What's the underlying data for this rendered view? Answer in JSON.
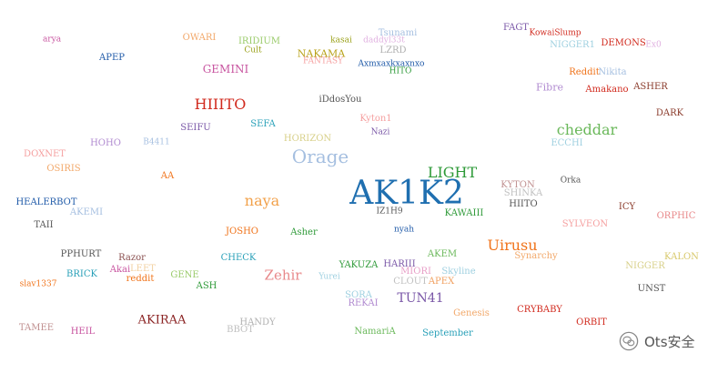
{
  "words": [
    {
      "text": "AK1K2",
      "color": "#1f6fb0"
    },
    {
      "text": "Orage",
      "color": "#a5bfe0"
    },
    {
      "text": "LIGHT",
      "color": "#2e9a38"
    },
    {
      "text": "HIIITO",
      "color": "#d12a1e"
    },
    {
      "text": "cheddar",
      "color": "#6ab85a"
    },
    {
      "text": "naya",
      "color": "#f2a14a"
    },
    {
      "text": "Uirusu",
      "color": "#f0731a"
    },
    {
      "text": "Zehir",
      "color": "#e8888a"
    },
    {
      "text": "TUN41",
      "color": "#7a57a7"
    },
    {
      "text": "AKIRAA",
      "color": "#8a2222"
    },
    {
      "text": "GEMINI",
      "color": "#c855a0"
    },
    {
      "text": "arya",
      "color": "#c855a0"
    },
    {
      "text": "APEP",
      "color": "#1f5aa8"
    },
    {
      "text": "OWARI",
      "color": "#f2a86a"
    },
    {
      "text": "IRIDIUM",
      "color": "#9acb6a"
    },
    {
      "text": "Cult",
      "color": "#9aa11a"
    },
    {
      "text": "NAKAMA",
      "color": "#b8a21a"
    },
    {
      "text": "FANTASY",
      "color": "#f5a0a0"
    },
    {
      "text": "kasai",
      "color": "#9aa11a"
    },
    {
      "text": "Tsunami",
      "color": "#a5bfe0"
    },
    {
      "text": "daddyl33t",
      "color": "#e0b0e0"
    },
    {
      "text": "LZRD",
      "color": "#b0b0b0"
    },
    {
      "text": "Axmxaxkxaxnxo",
      "color": "#1f5aa8"
    },
    {
      "text": "HITO",
      "color": "#2e9a38"
    },
    {
      "text": "FAGT",
      "color": "#7a57a7"
    },
    {
      "text": "KowaiSlump",
      "color": "#d12a1e"
    },
    {
      "text": "NIGGER1",
      "color": "#9fd0e0"
    },
    {
      "text": "DEMONS",
      "color": "#d12a1e"
    },
    {
      "text": "Ex0",
      "color": "#e0b0e0"
    },
    {
      "text": "Reddit",
      "color": "#f0731a"
    },
    {
      "text": "Nikita",
      "color": "#a5bfe0"
    },
    {
      "text": "Fibre",
      "color": "#b08ad0"
    },
    {
      "text": "Amakano",
      "color": "#d12a1e"
    },
    {
      "text": "ASHER",
      "color": "#8a3a2a"
    },
    {
      "text": "DARK",
      "color": "#8a3a2a"
    },
    {
      "text": "iDdosYou",
      "color": "#555555"
    },
    {
      "text": "Kyton1",
      "color": "#f5a0a0"
    },
    {
      "text": "Nazi",
      "color": "#7a57a7"
    },
    {
      "text": "HORIZON",
      "color": "#d8d08a"
    },
    {
      "text": "SEIFU",
      "color": "#7a57a7"
    },
    {
      "text": "SEFA",
      "color": "#29a0b8"
    },
    {
      "text": "HOHO",
      "color": "#b08ad0"
    },
    {
      "text": "B4411",
      "color": "#a5bfe0"
    },
    {
      "text": "DOXNET",
      "color": "#f5a0a0"
    },
    {
      "text": "OSIRIS",
      "color": "#f2a86a"
    },
    {
      "text": "AA",
      "color": "#f0731a"
    },
    {
      "text": "ECCHI",
      "color": "#9fd0e0"
    },
    {
      "text": "Orka",
      "color": "#555555"
    },
    {
      "text": "KYTON",
      "color": "#c09090"
    },
    {
      "text": "SHINKA",
      "color": "#c0c0c0"
    },
    {
      "text": "HIITO",
      "color": "#555555"
    },
    {
      "text": "ICY",
      "color": "#8a3a2a"
    },
    {
      "text": "ORPHIC",
      "color": "#e8888a"
    },
    {
      "text": "SYLVEON",
      "color": "#f5a0a0"
    },
    {
      "text": "HEALERBOT",
      "color": "#1f5aa8"
    },
    {
      "text": "AKEMI",
      "color": "#a5bfe0"
    },
    {
      "text": "TAII",
      "color": "#555555"
    },
    {
      "text": "IZ1H9",
      "color": "#555555"
    },
    {
      "text": "KAWAIII",
      "color": "#2e9a38"
    },
    {
      "text": "JOSHO",
      "color": "#f0731a"
    },
    {
      "text": "Asher",
      "color": "#2e9a38"
    },
    {
      "text": "nyah",
      "color": "#1f5aa8"
    },
    {
      "text": "AKEM",
      "color": "#6ab85a"
    },
    {
      "text": "Synarchy",
      "color": "#f2a86a"
    },
    {
      "text": "KALON",
      "color": "#d8c86a"
    },
    {
      "text": "NIGGER",
      "color": "#d8d08a"
    },
    {
      "text": "UNST",
      "color": "#555555"
    },
    {
      "text": "PPHURT",
      "color": "#555555"
    },
    {
      "text": "Razor",
      "color": "#8a5050"
    },
    {
      "text": "CHECK",
      "color": "#29a0b8"
    },
    {
      "text": "YAKUZA",
      "color": "#2e9a38"
    },
    {
      "text": "HARIII",
      "color": "#7a57a7"
    },
    {
      "text": "MIORI",
      "color": "#e8a0c8"
    },
    {
      "text": "Skyline",
      "color": "#9fd0e0"
    },
    {
      "text": "CLOUT",
      "color": "#c0c0c0"
    },
    {
      "text": "APEX",
      "color": "#f0a060"
    },
    {
      "text": "Akai",
      "color": "#c855a0"
    },
    {
      "text": "LEET",
      "color": "#f2d0a0"
    },
    {
      "text": "BRICK",
      "color": "#29a0b8"
    },
    {
      "text": "reddit",
      "color": "#f0731a"
    },
    {
      "text": "GENE",
      "color": "#9acb6a"
    },
    {
      "text": "ASH",
      "color": "#2e9a38"
    },
    {
      "text": "slav1337",
      "color": "#f0731a"
    },
    {
      "text": "Yurei",
      "color": "#9fd0e0"
    },
    {
      "text": "SORA",
      "color": "#9fd0e0"
    },
    {
      "text": "REKAI",
      "color": "#b08ad0"
    },
    {
      "text": "Genesis",
      "color": "#f2a86a"
    },
    {
      "text": "CRYBABY",
      "color": "#d12a1e"
    },
    {
      "text": "ORBIT",
      "color": "#d12a1e"
    },
    {
      "text": "TAMEE",
      "color": "#c09090"
    },
    {
      "text": "HEIL",
      "color": "#c855a0"
    },
    {
      "text": "HANDY",
      "color": "#b0b0b0"
    },
    {
      "text": "BBOT",
      "color": "#c0c0c0"
    },
    {
      "text": "NamariA",
      "color": "#6ab85a"
    },
    {
      "text": "September",
      "color": "#29a0b8"
    }
  ],
  "watermark": {
    "text": "Ots安全",
    "icon": "wechat-logo-icon"
  }
}
